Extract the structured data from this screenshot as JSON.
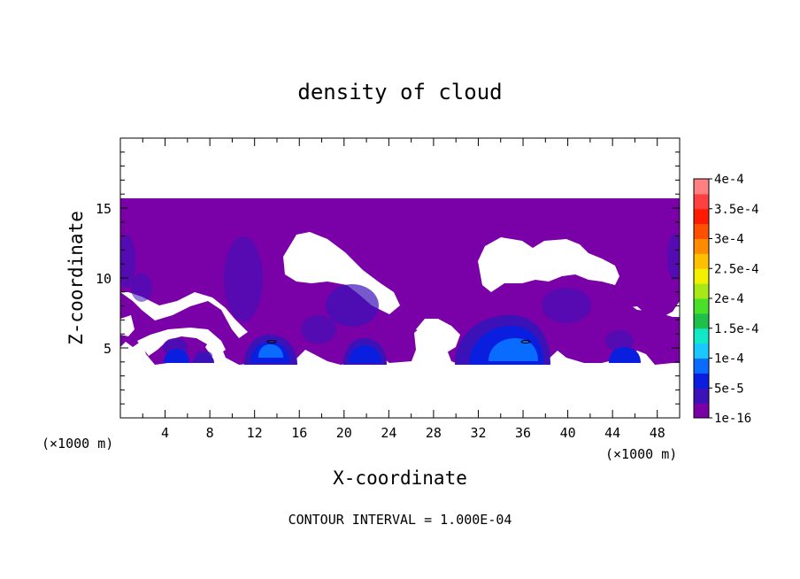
{
  "chart_data": {
    "type": "heatmap",
    "title": "density of cloud",
    "xlabel": "X-coordinate",
    "ylabel": "Z-coordinate",
    "x_unit": "(×1000 m)",
    "y_unit": "(×1000 m)",
    "xlim": [
      0,
      50
    ],
    "ylim": [
      0,
      20
    ],
    "x_ticks": [
      "4",
      "8",
      "12",
      "16",
      "20",
      "24",
      "28",
      "32",
      "36",
      "40",
      "44",
      "48"
    ],
    "y_ticks": [
      "5",
      "10",
      "15"
    ],
    "footnote": "CONTOUR INTERVAL = 1.000E-04",
    "colorbar": {
      "labels": [
        "1e-16",
        "5e-5",
        "1e-4",
        "1.5e-4",
        "2e-4",
        "2.5e-4",
        "3e-4",
        "3.5e-4",
        "4e-4"
      ],
      "colors": [
        "#7a00a8",
        "#3a12b8",
        "#0a1ee0",
        "#0a6cff",
        "#18c8ff",
        "#10e8c8",
        "#1ec04a",
        "#48e028",
        "#a8e818",
        "#f0f000",
        "#ffc000",
        "#ff8c00",
        "#ff5000",
        "#ff1a00",
        "#ff4040",
        "#ff8080"
      ]
    },
    "regions": {
      "cloud_top_z": 15.6,
      "cloud_base_z": 4.0,
      "dense_cores": [
        {
          "x": 13.5,
          "z": 5.0,
          "level": "1e-4"
        },
        {
          "x": 21.5,
          "z": 4.8,
          "level": "5e-5"
        },
        {
          "x": 35.0,
          "z": 5.2,
          "level": "1e-4"
        },
        {
          "x": 10.8,
          "z": 10.5,
          "level": "5e-5"
        },
        {
          "x": 20.5,
          "z": 8.2,
          "level": "5e-5"
        }
      ]
    }
  }
}
